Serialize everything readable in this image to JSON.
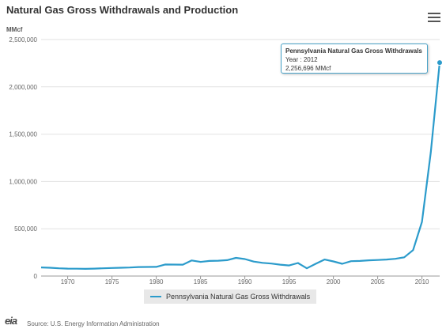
{
  "chart_data": {
    "type": "line",
    "title": "Natural Gas Gross Withdrawals and Production",
    "ylabel": "MMcf",
    "xlim": [
      1967,
      2012
    ],
    "ylim": [
      0,
      2500000
    ],
    "yticks": [
      0,
      500000,
      1000000,
      1500000,
      2000000,
      2500000
    ],
    "ytick_labels": [
      "0",
      "500,000",
      "1,000,000",
      "1,500,000",
      "2,000,000",
      "2,500,000"
    ],
    "xticks": [
      1970,
      1975,
      1980,
      1985,
      1990,
      1995,
      2000,
      2005,
      2010
    ],
    "xtick_labels": [
      "1970",
      "1975",
      "1980",
      "1985",
      "1990",
      "1995",
      "2000",
      "2005",
      "2010"
    ],
    "grid": "horizontal",
    "legend_position": "bottom-center",
    "color": "#2b9bcb",
    "series": [
      {
        "name": "Pennsylvania Natural Gas Gross Withdrawals",
        "x": [
          1967,
          1968,
          1969,
          1970,
          1971,
          1972,
          1973,
          1974,
          1975,
          1976,
          1977,
          1978,
          1979,
          1980,
          1981,
          1982,
          1983,
          1984,
          1985,
          1986,
          1987,
          1988,
          1989,
          1990,
          1991,
          1992,
          1993,
          1994,
          1995,
          1996,
          1997,
          1998,
          1999,
          2000,
          2001,
          2002,
          2003,
          2004,
          2005,
          2006,
          2007,
          2008,
          2009,
          2010,
          2011,
          2012
        ],
        "y": [
          91000,
          88000,
          82000,
          79000,
          78000,
          76000,
          79000,
          82000,
          85000,
          88000,
          90000,
          95000,
          96000,
          97000,
          122000,
          121000,
          120000,
          165000,
          150000,
          160000,
          162000,
          168000,
          192000,
          180000,
          153000,
          140000,
          132000,
          120000,
          112000,
          138000,
          82000,
          130000,
          175000,
          155000,
          130000,
          157000,
          160000,
          166000,
          170000,
          175000,
          182000,
          198000,
          274000,
          573000,
          1310000,
          2256696
        ]
      }
    ],
    "tooltip": {
      "series": "Pennsylvania Natural Gas Gross Withdrawals",
      "year_line": "Year : 2012",
      "value_line": "2,256,696 MMcf"
    }
  },
  "menu": {
    "icon": "hamburger-icon"
  },
  "source": {
    "logo_text": "eia",
    "text": "Source: U.S. Energy Information Administration"
  }
}
